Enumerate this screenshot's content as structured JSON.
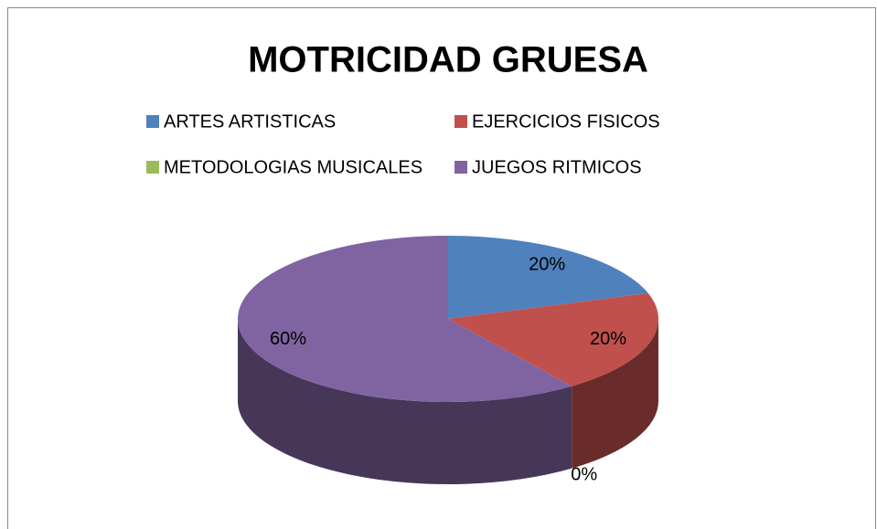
{
  "chart_data": {
    "type": "pie",
    "title": "MOTRICIDAD GRUESA",
    "categories": [
      "ARTES ARTISTICAS",
      "EJERCICIOS FISICOS",
      "METODOLOGIAS MUSICALES",
      "JUEGOS RITMICOS"
    ],
    "values": [
      20,
      20,
      0,
      60
    ],
    "value_labels": [
      "20%",
      "20%",
      "0%",
      "60%"
    ],
    "colors": [
      "#4f81bd",
      "#c0504d",
      "#9bbb59",
      "#8064a2"
    ],
    "legend": "top"
  }
}
